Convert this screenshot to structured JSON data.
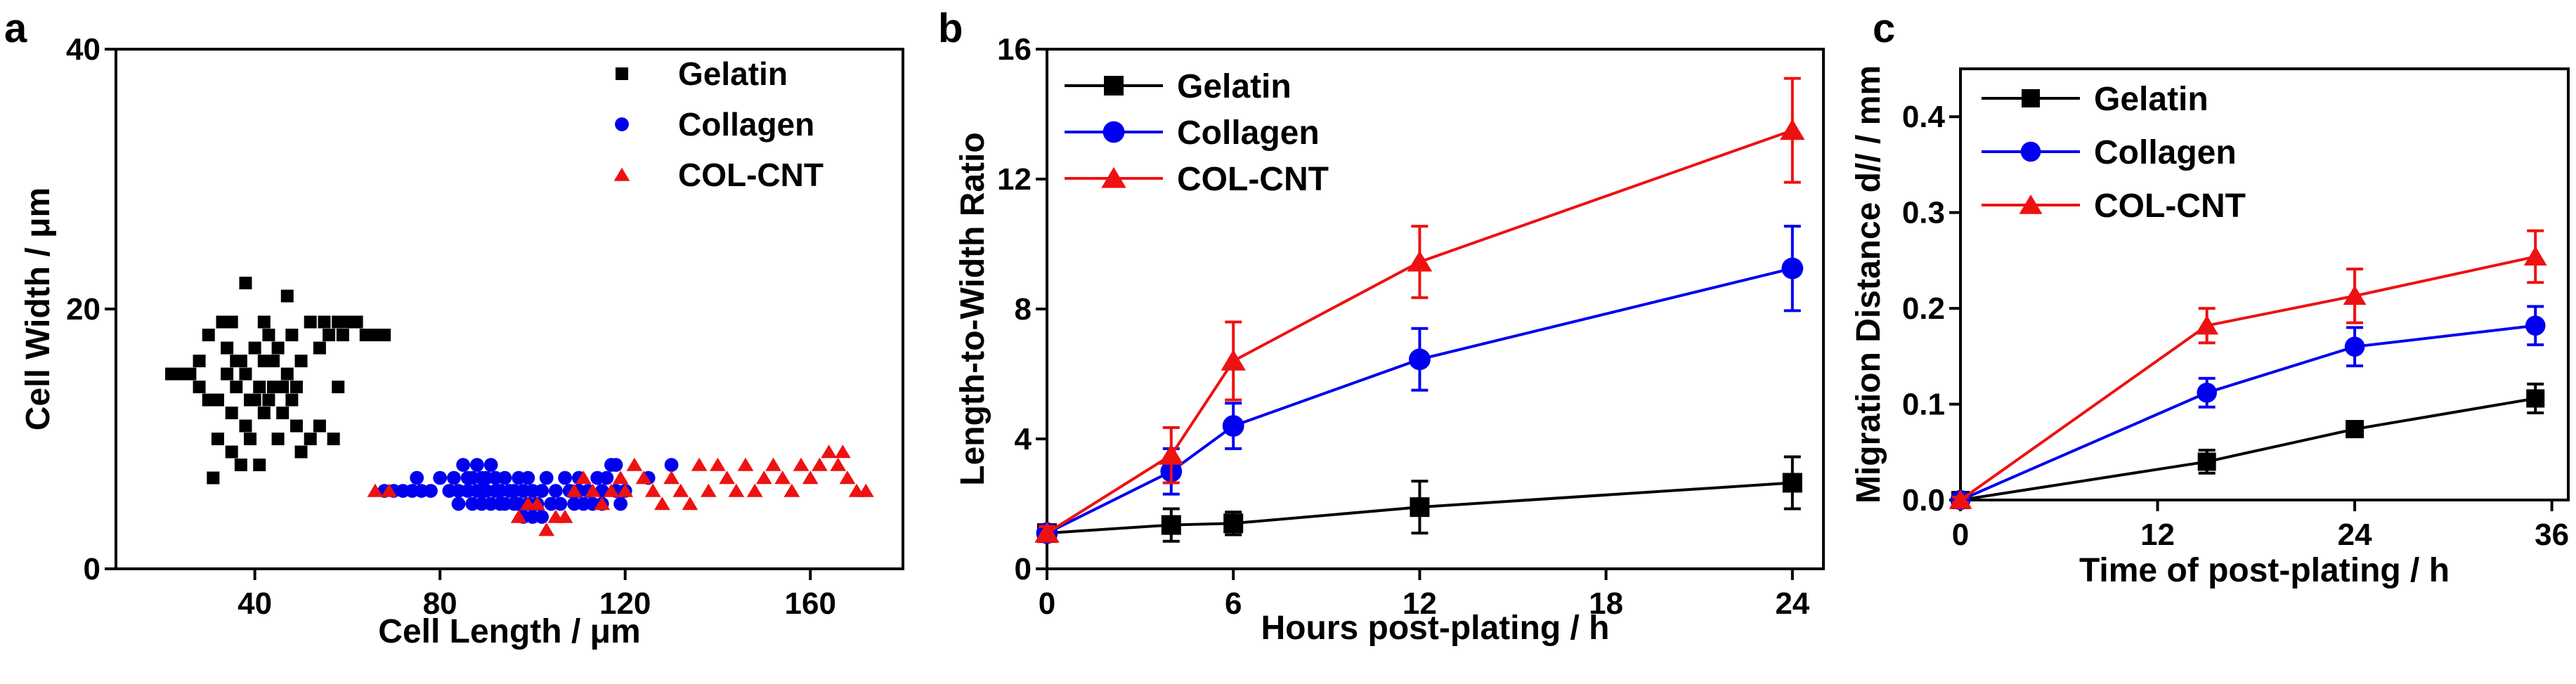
{
  "colors": {
    "black": "#000000",
    "blue": "#0000ee",
    "red": "#ee1111"
  },
  "panel_labels": [
    "a",
    "b",
    "c"
  ],
  "chart_data": [
    {
      "panel": "a",
      "type": "scatter",
      "title": "",
      "xlabel": "Cell Length / μm",
      "ylabel": "Cell Width / μm",
      "xlim": [
        10,
        180
      ],
      "ylim": [
        0,
        40
      ],
      "xticks": [
        40,
        80,
        120,
        160
      ],
      "yticks": [
        0,
        20,
        40
      ],
      "legend": "top-right",
      "series": [
        {
          "name": "Gelatin",
          "marker": "square",
          "color": "#000000",
          "points": [
            [
              22,
              15
            ],
            [
              24,
              15
            ],
            [
              26,
              15
            ],
            [
              28,
              14
            ],
            [
              28,
              16
            ],
            [
              30,
              13
            ],
            [
              30,
              18
            ],
            [
              31,
              7
            ],
            [
              32,
              10
            ],
            [
              32,
              13
            ],
            [
              33,
              19
            ],
            [
              34,
              15
            ],
            [
              34,
              17
            ],
            [
              35,
              9
            ],
            [
              35,
              12
            ],
            [
              35,
              19
            ],
            [
              36,
              14
            ],
            [
              36,
              16
            ],
            [
              37,
              8
            ],
            [
              37,
              16
            ],
            [
              38,
              11
            ],
            [
              38,
              15
            ],
            [
              38,
              22
            ],
            [
              39,
              10
            ],
            [
              39,
              13
            ],
            [
              40,
              13
            ],
            [
              40,
              17
            ],
            [
              41,
              8
            ],
            [
              41,
              14
            ],
            [
              42,
              12
            ],
            [
              42,
              16
            ],
            [
              42,
              19
            ],
            [
              43,
              13
            ],
            [
              43,
              18
            ],
            [
              44,
              14
            ],
            [
              44,
              16
            ],
            [
              45,
              10
            ],
            [
              45,
              17
            ],
            [
              46,
              12
            ],
            [
              46,
              14
            ],
            [
              47,
              21
            ],
            [
              47,
              15
            ],
            [
              48,
              13
            ],
            [
              48,
              18
            ],
            [
              49,
              11
            ],
            [
              49,
              14
            ],
            [
              50,
              9
            ],
            [
              50,
              16
            ],
            [
              52,
              10
            ],
            [
              52,
              19
            ],
            [
              54,
              17
            ],
            [
              54,
              11
            ],
            [
              55,
              19
            ],
            [
              56,
              18
            ],
            [
              57,
              10
            ],
            [
              58,
              14
            ],
            [
              58,
              19
            ],
            [
              59,
              18
            ],
            [
              60,
              19
            ],
            [
              62,
              19
            ],
            [
              64,
              18
            ],
            [
              66,
              18
            ],
            [
              68,
              18
            ]
          ]
        },
        {
          "name": "Collagen",
          "marker": "circle",
          "color": "#0000ee",
          "points": [
            [
              68,
              6
            ],
            [
              70,
              6
            ],
            [
              72,
              6
            ],
            [
              74,
              6
            ],
            [
              75,
              7
            ],
            [
              76,
              6
            ],
            [
              78,
              6
            ],
            [
              80,
              7
            ],
            [
              82,
              6
            ],
            [
              83,
              7
            ],
            [
              84,
              6
            ],
            [
              84,
              5
            ],
            [
              85,
              8
            ],
            [
              86,
              6
            ],
            [
              86,
              7
            ],
            [
              87,
              5
            ],
            [
              87,
              7
            ],
            [
              88,
              6
            ],
            [
              88,
              8
            ],
            [
              89,
              5
            ],
            [
              89,
              6
            ],
            [
              89,
              7
            ],
            [
              90,
              6
            ],
            [
              90,
              7
            ],
            [
              91,
              5
            ],
            [
              91,
              8
            ],
            [
              92,
              6
            ],
            [
              92,
              7
            ],
            [
              93,
              5
            ],
            [
              93,
              6
            ],
            [
              94,
              5
            ],
            [
              94,
              7
            ],
            [
              95,
              6
            ],
            [
              96,
              5
            ],
            [
              96,
              6
            ],
            [
              97,
              7
            ],
            [
              97,
              5
            ],
            [
              98,
              6
            ],
            [
              98,
              4
            ],
            [
              99,
              5
            ],
            [
              99,
              7
            ],
            [
              100,
              6
            ],
            [
              100,
              4
            ],
            [
              101,
              5
            ],
            [
              102,
              6
            ],
            [
              102,
              4
            ],
            [
              103,
              7
            ],
            [
              104,
              5
            ],
            [
              105,
              6
            ],
            [
              106,
              5
            ],
            [
              107,
              7
            ],
            [
              108,
              6
            ],
            [
              109,
              5
            ],
            [
              110,
              6
            ],
            [
              110,
              7
            ],
            [
              111,
              5
            ],
            [
              112,
              6
            ],
            [
              113,
              5
            ],
            [
              114,
              7
            ],
            [
              115,
              6
            ],
            [
              115,
              5
            ],
            [
              116,
              7
            ],
            [
              117,
              8
            ],
            [
              118,
              6
            ],
            [
              118,
              8
            ],
            [
              119,
              5
            ],
            [
              120,
              6
            ],
            [
              125,
              7
            ],
            [
              130,
              8
            ]
          ]
        },
        {
          "name": "COL-CNT",
          "marker": "triangle",
          "color": "#ee1111",
          "points": [
            [
              66,
              6
            ],
            [
              69,
              6
            ],
            [
              97,
              4
            ],
            [
              99,
              5
            ],
            [
              101,
              5
            ],
            [
              103,
              3
            ],
            [
              105,
              4
            ],
            [
              107,
              4
            ],
            [
              109,
              6
            ],
            [
              111,
              7
            ],
            [
              113,
              6
            ],
            [
              115,
              5
            ],
            [
              117,
              6
            ],
            [
              119,
              7
            ],
            [
              120,
              6
            ],
            [
              122,
              8
            ],
            [
              124,
              7
            ],
            [
              126,
              6
            ],
            [
              128,
              5
            ],
            [
              130,
              7
            ],
            [
              132,
              6
            ],
            [
              134,
              5
            ],
            [
              136,
              8
            ],
            [
              138,
              6
            ],
            [
              140,
              8
            ],
            [
              142,
              7
            ],
            [
              144,
              6
            ],
            [
              146,
              8
            ],
            [
              148,
              6
            ],
            [
              150,
              7
            ],
            [
              152,
              8
            ],
            [
              154,
              7
            ],
            [
              156,
              6
            ],
            [
              158,
              8
            ],
            [
              160,
              7
            ],
            [
              162,
              8
            ],
            [
              164,
              9
            ],
            [
              166,
              8
            ],
            [
              167,
              9
            ],
            [
              168,
              7
            ],
            [
              170,
              6
            ],
            [
              172,
              6
            ]
          ]
        }
      ]
    },
    {
      "panel": "b",
      "type": "line",
      "title": "",
      "xlabel": "Hours post-plating / h",
      "ylabel": "Length-to-Width Ratio",
      "xlim": [
        0,
        25
      ],
      "ylim": [
        0,
        16
      ],
      "xticks": [
        0,
        6,
        12,
        18,
        24
      ],
      "yticks": [
        0,
        4,
        8,
        12,
        16
      ],
      "legend": "top-left",
      "x": [
        0,
        4,
        6,
        12,
        24
      ],
      "series": [
        {
          "name": "Gelatin",
          "marker": "square",
          "color": "#000000",
          "values": [
            1.1,
            1.35,
            1.4,
            1.9,
            2.65
          ],
          "errors": [
            0.2,
            0.5,
            0.35,
            0.8,
            0.8
          ]
        },
        {
          "name": "Collagen",
          "marker": "circle",
          "color": "#0000ee",
          "values": [
            1.1,
            3.0,
            4.4,
            6.45,
            9.25
          ],
          "errors": [
            0.2,
            0.7,
            0.7,
            0.95,
            1.3
          ]
        },
        {
          "name": "COL-CNT",
          "marker": "triangle",
          "color": "#ee1111",
          "values": [
            1.1,
            3.5,
            6.4,
            9.45,
            13.5
          ],
          "errors": [
            0.2,
            0.85,
            1.2,
            1.1,
            1.6
          ]
        }
      ]
    },
    {
      "panel": "c",
      "type": "line",
      "title": "",
      "xlabel": "Time of post-plating / h",
      "ylabel": "Migration Distance d// / mm",
      "xlim": [
        0,
        37
      ],
      "ylim": [
        0,
        0.45
      ],
      "xticks": [
        0,
        12,
        24,
        36
      ],
      "yticks": [
        0.0,
        0.1,
        0.2,
        0.3,
        0.4
      ],
      "legend": "top-left",
      "x": [
        0,
        15,
        24,
        35
      ],
      "series": [
        {
          "name": "Gelatin",
          "marker": "square",
          "color": "#000000",
          "values": [
            0.0,
            0.04,
            0.074,
            0.106
          ],
          "errors": [
            0.003,
            0.012,
            0.006,
            0.015
          ]
        },
        {
          "name": "Collagen",
          "marker": "circle",
          "color": "#0000ee",
          "values": [
            0.0,
            0.112,
            0.16,
            0.182
          ],
          "errors": [
            0.003,
            0.015,
            0.02,
            0.02
          ]
        },
        {
          "name": "COL-CNT",
          "marker": "triangle",
          "color": "#ee1111",
          "values": [
            0.0,
            0.182,
            0.213,
            0.254
          ],
          "errors": [
            0.003,
            0.018,
            0.028,
            0.027
          ]
        }
      ]
    }
  ]
}
